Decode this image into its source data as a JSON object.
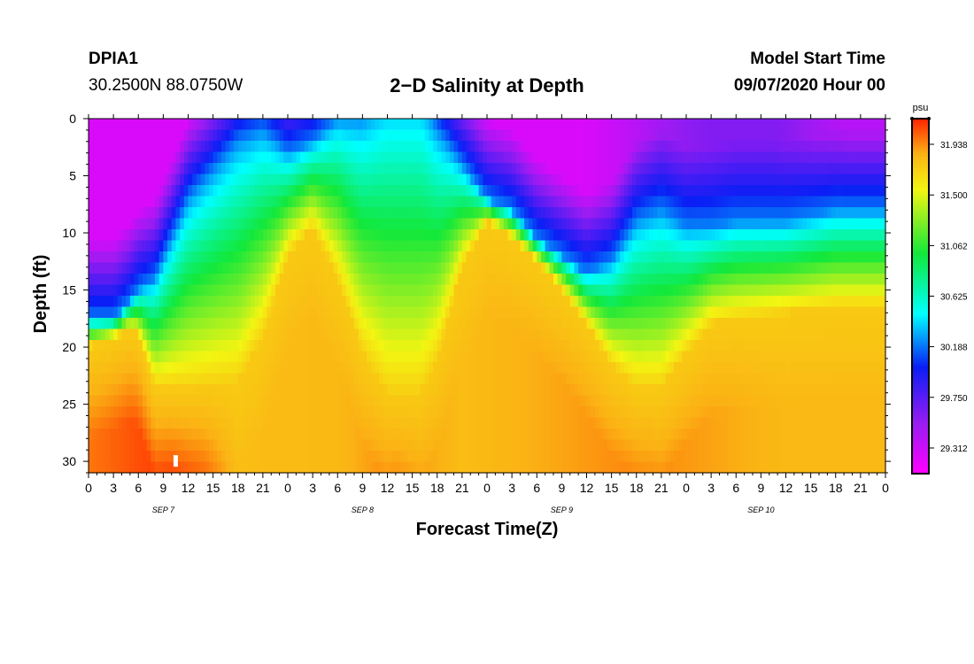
{
  "header": {
    "station": "DPIA1",
    "coords": "30.2500N 88.0750W",
    "title": "2−D Salinity at Depth",
    "start_label": "Model Start Time",
    "start_time": "09/07/2020 Hour 00"
  },
  "chart_data": {
    "type": "heatmap",
    "title": "2−D Salinity at Depth",
    "xlabel": "Forecast Time(Z)",
    "ylabel": "Depth (ft)",
    "x_range_hours": [
      0,
      96
    ],
    "y_range_ft": [
      0,
      31
    ],
    "x_tick_labels": [
      "0",
      "3",
      "6",
      "9",
      "12",
      "15",
      "18",
      "21",
      "0",
      "3",
      "6",
      "9",
      "12",
      "15",
      "18",
      "21",
      "0",
      "3",
      "6",
      "9",
      "12",
      "15",
      "18",
      "21",
      "0",
      "3",
      "6",
      "9",
      "12",
      "15",
      "18",
      "21",
      "0"
    ],
    "day_labels": [
      "SEP 7",
      "SEP 8",
      "SEP 9",
      "SEP 10"
    ],
    "y_ticks": [
      0,
      5,
      10,
      15,
      20,
      25,
      30
    ],
    "colorbar": {
      "unit": "psu",
      "tick_labels": [
        "31.938",
        "31.500",
        "31.062",
        "30.625",
        "30.188",
        "29.750",
        "29.312"
      ],
      "min": 29.09,
      "max": 32.16
    },
    "interface_depths": {
      "hours": [
        0,
        3,
        5,
        6,
        8,
        12,
        18,
        21,
        24,
        27,
        30,
        33,
        36,
        40,
        42,
        45,
        48,
        51,
        54,
        57,
        60,
        63,
        66,
        69,
        72,
        75,
        78,
        84,
        90,
        96
      ],
      "lower_depth": [
        20,
        19.2,
        18.5,
        19,
        23.5,
        23.5,
        23,
        19,
        12,
        9.5,
        14,
        20.5,
        24,
        24,
        21,
        13,
        9,
        10.5,
        12.5,
        15,
        18,
        21.5,
        23.5,
        23.5,
        20.5,
        18,
        17.5,
        17,
        16.5,
        16.5
      ],
      "upper_depth": [
        17.5,
        17.5,
        16,
        15,
        14,
        7,
        2,
        1,
        3,
        2,
        0,
        0,
        -2,
        -2,
        1,
        4,
        7,
        8,
        10.5,
        12,
        13.5,
        12.5,
        9,
        8,
        9.5,
        9.5,
        9,
        9,
        8,
        8
      ]
    },
    "bottom_max": {
      "hours": [
        0,
        10,
        14,
        18,
        30,
        37,
        45,
        57,
        66,
        84,
        96
      ],
      "salinity": [
        31.98,
        32.12,
        32.02,
        31.8,
        31.82,
        31.95,
        31.8,
        31.88,
        31.95,
        31.82,
        31.82
      ]
    },
    "marker": {
      "hour": 10.5,
      "depth_ft": 30
    }
  }
}
